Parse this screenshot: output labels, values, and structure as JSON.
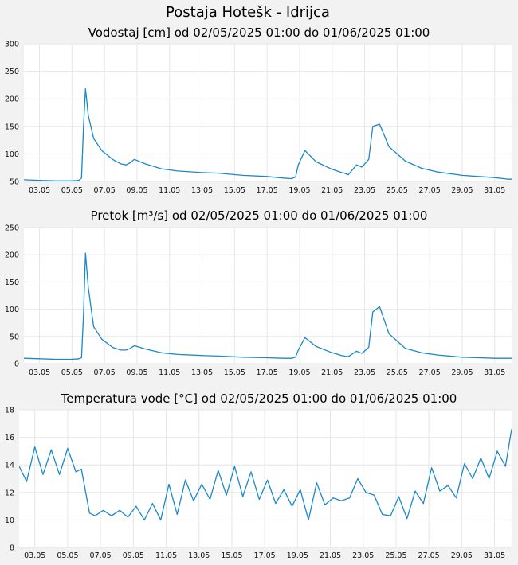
{
  "station_title": "Postaja Hotešk - Idrijca",
  "colors": {
    "line": "#1a88c9",
    "grid": "#e6e6e6",
    "plot_bg": "#ffffff",
    "page_bg": "#f2f2f2"
  },
  "chart_data": [
    {
      "type": "line",
      "title": "Vodostaj [cm] od 02/05/2025 01:00 do 01/06/2025 01:00",
      "xlabel": "",
      "ylabel": "",
      "x_ticks": [
        "03.05",
        "05.05",
        "07.05",
        "09.05",
        "11.05",
        "13.05",
        "15.05",
        "17.05",
        "19.05",
        "21.05",
        "23.05",
        "25.05",
        "27.05",
        "29.05",
        "31.05"
      ],
      "xlim": [
        "2025-05-02 01:00",
        "2025-06-01 01:00"
      ],
      "ylim": [
        50,
        300
      ],
      "y_ticks": [
        50,
        100,
        150,
        200,
        250,
        300
      ],
      "grid": true,
      "series": [
        {
          "x": [
            "2025-05-02 01:00",
            "2025-05-03 00:00",
            "2025-05-04 00:00",
            "2025-05-05 00:00",
            "2025-05-05 10:00",
            "2025-05-05 14:00",
            "2025-05-05 17:00",
            "2025-05-05 20:00",
            "2025-05-06 00:00",
            "2025-05-06 08:00",
            "2025-05-06 20:00",
            "2025-05-07 12:00",
            "2025-05-08 00:00",
            "2025-05-08 08:00",
            "2025-05-08 14:00",
            "2025-05-08 20:00",
            "2025-05-09 12:00",
            "2025-05-10 12:00",
            "2025-05-11 12:00",
            "2025-05-13 00:00",
            "2025-05-14 00:00",
            "2025-05-15 12:00",
            "2025-05-17 00:00",
            "2025-05-18 00:00",
            "2025-05-18 12:00",
            "2025-05-18 18:00",
            "2025-05-18 22:00",
            "2025-05-19 08:00",
            "2025-05-20 00:00",
            "2025-05-21 00:00",
            "2025-05-21 14:00",
            "2025-05-21 18:00",
            "2025-05-22 00:00",
            "2025-05-22 12:00",
            "2025-05-22 20:00",
            "2025-05-23 06:00",
            "2025-05-23 12:00",
            "2025-05-23 22:00",
            "2025-05-24 12:00",
            "2025-05-25 12:00",
            "2025-05-26 12:00",
            "2025-05-27 12:00",
            "2025-05-29 00:00",
            "2025-05-30 00:00",
            "2025-05-31 00:00",
            "2025-05-31 20:00",
            "2025-06-01 01:00"
          ],
          "y": [
            53,
            52,
            51,
            51,
            52,
            56,
            150,
            218,
            170,
            128,
            106,
            90,
            82,
            80,
            84,
            90,
            82,
            73,
            69,
            66,
            65,
            61,
            59,
            56,
            55,
            58,
            80,
            106,
            86,
            72,
            66,
            65,
            62,
            80,
            76,
            90,
            150,
            154,
            113,
            87,
            74,
            67,
            61,
            59,
            57,
            54,
            54
          ]
        }
      ]
    },
    {
      "type": "line",
      "title": "Pretok [m³/s] od 02/05/2025 01:00 do 01/06/2025 01:00",
      "xlabel": "",
      "ylabel": "",
      "x_ticks": [
        "03.05",
        "05.05",
        "07.05",
        "09.05",
        "11.05",
        "13.05",
        "15.05",
        "17.05",
        "19.05",
        "21.05",
        "23.05",
        "25.05",
        "27.05",
        "29.05",
        "31.05"
      ],
      "xlim": [
        "2025-05-02 01:00",
        "2025-06-01 01:00"
      ],
      "ylim": [
        0,
        250
      ],
      "y_ticks": [
        0,
        50,
        100,
        150,
        200,
        250
      ],
      "grid": true,
      "series": [
        {
          "x": [
            "2025-05-02 01:00",
            "2025-05-03 00:00",
            "2025-05-04 00:00",
            "2025-05-05 00:00",
            "2025-05-05 10:00",
            "2025-05-05 14:00",
            "2025-05-05 17:00",
            "2025-05-05 20:00",
            "2025-05-06 00:00",
            "2025-05-06 08:00",
            "2025-05-06 20:00",
            "2025-05-07 12:00",
            "2025-05-08 00:00",
            "2025-05-08 08:00",
            "2025-05-08 14:00",
            "2025-05-08 20:00",
            "2025-05-09 12:00",
            "2025-05-10 12:00",
            "2025-05-11 12:00",
            "2025-05-13 00:00",
            "2025-05-14 00:00",
            "2025-05-15 12:00",
            "2025-05-17 00:00",
            "2025-05-18 00:00",
            "2025-05-18 12:00",
            "2025-05-18 18:00",
            "2025-05-18 22:00",
            "2025-05-19 08:00",
            "2025-05-20 00:00",
            "2025-05-21 00:00",
            "2025-05-21 14:00",
            "2025-05-21 18:00",
            "2025-05-22 00:00",
            "2025-05-22 12:00",
            "2025-05-22 20:00",
            "2025-05-23 06:00",
            "2025-05-23 12:00",
            "2025-05-23 22:00",
            "2025-05-24 12:00",
            "2025-05-25 12:00",
            "2025-05-26 12:00",
            "2025-05-27 12:00",
            "2025-05-29 00:00",
            "2025-05-30 00:00",
            "2025-05-31 00:00",
            "2025-05-31 20:00",
            "2025-06-01 01:00"
          ],
          "y": [
            10,
            9,
            8,
            8,
            9,
            11,
            90,
            203,
            140,
            68,
            45,
            30,
            25,
            25,
            28,
            33,
            27,
            20,
            17,
            15,
            14,
            12,
            11,
            10,
            10,
            12,
            25,
            48,
            32,
            20,
            15,
            14,
            13,
            23,
            19,
            30,
            95,
            105,
            55,
            28,
            20,
            16,
            12,
            11,
            10,
            10,
            10
          ]
        }
      ]
    },
    {
      "type": "line",
      "title": "Temperatura vode [°C] od 02/05/2025 01:00 do 01/06/2025 01:00",
      "xlabel": "",
      "ylabel": "",
      "x_ticks": [
        "03.05",
        "05.05",
        "07.05",
        "09.05",
        "11.05",
        "13.05",
        "15.05",
        "17.05",
        "19.05",
        "21.05",
        "23.05",
        "25.05",
        "27.05",
        "29.05",
        "31.05"
      ],
      "xlim": [
        "2025-05-02 01:00",
        "2025-06-01 01:00"
      ],
      "ylim": [
        8,
        18
      ],
      "y_ticks": [
        8,
        10,
        12,
        14,
        16,
        18
      ],
      "grid": true,
      "series": [
        {
          "x": [
            "2025-05-02 01:00",
            "2025-05-02 12:00",
            "2025-05-03 00:00",
            "2025-05-03 12:00",
            "2025-05-04 00:00",
            "2025-05-04 12:00",
            "2025-05-05 00:00",
            "2025-05-05 12:00",
            "2025-05-05 20:00",
            "2025-05-06 08:00",
            "2025-05-06 16:00",
            "2025-05-07 04:00",
            "2025-05-07 16:00",
            "2025-05-08 04:00",
            "2025-05-08 16:00",
            "2025-05-09 04:00",
            "2025-05-09 16:00",
            "2025-05-10 04:00",
            "2025-05-10 16:00",
            "2025-05-11 04:00",
            "2025-05-11 16:00",
            "2025-05-12 04:00",
            "2025-05-12 16:00",
            "2025-05-13 04:00",
            "2025-05-13 16:00",
            "2025-05-14 04:00",
            "2025-05-14 16:00",
            "2025-05-15 04:00",
            "2025-05-15 16:00",
            "2025-05-16 04:00",
            "2025-05-16 16:00",
            "2025-05-17 04:00",
            "2025-05-17 16:00",
            "2025-05-18 04:00",
            "2025-05-18 16:00",
            "2025-05-19 04:00",
            "2025-05-19 16:00",
            "2025-05-20 04:00",
            "2025-05-20 16:00",
            "2025-05-21 04:00",
            "2025-05-21 16:00",
            "2025-05-22 04:00",
            "2025-05-22 16:00",
            "2025-05-23 04:00",
            "2025-05-23 16:00",
            "2025-05-24 04:00",
            "2025-05-24 16:00",
            "2025-05-25 04:00",
            "2025-05-25 16:00",
            "2025-05-26 04:00",
            "2025-05-26 16:00",
            "2025-05-27 04:00",
            "2025-05-27 16:00",
            "2025-05-28 04:00",
            "2025-05-28 16:00",
            "2025-05-29 04:00",
            "2025-05-29 16:00",
            "2025-05-30 04:00",
            "2025-05-30 16:00",
            "2025-05-31 04:00",
            "2025-05-31 16:00",
            "2025-06-01 01:00"
          ],
          "y": [
            13.9,
            12.8,
            15.3,
            13.3,
            15.1,
            13.3,
            15.2,
            13.5,
            13.7,
            10.5,
            10.3,
            10.7,
            10.3,
            10.7,
            10.2,
            11.0,
            10.0,
            11.2,
            10.0,
            12.6,
            10.4,
            12.9,
            11.4,
            12.6,
            11.5,
            13.6,
            11.8,
            13.9,
            11.7,
            13.5,
            11.5,
            12.9,
            11.2,
            12.2,
            11.0,
            12.2,
            10.0,
            12.7,
            11.1,
            11.6,
            11.4,
            11.6,
            13.0,
            12.0,
            11.8,
            10.4,
            10.3,
            11.7,
            10.1,
            12.1,
            11.2,
            13.8,
            12.1,
            12.5,
            11.6,
            14.1,
            13.0,
            14.5,
            13.0,
            15.0,
            13.9,
            16.6
          ]
        }
      ]
    }
  ]
}
